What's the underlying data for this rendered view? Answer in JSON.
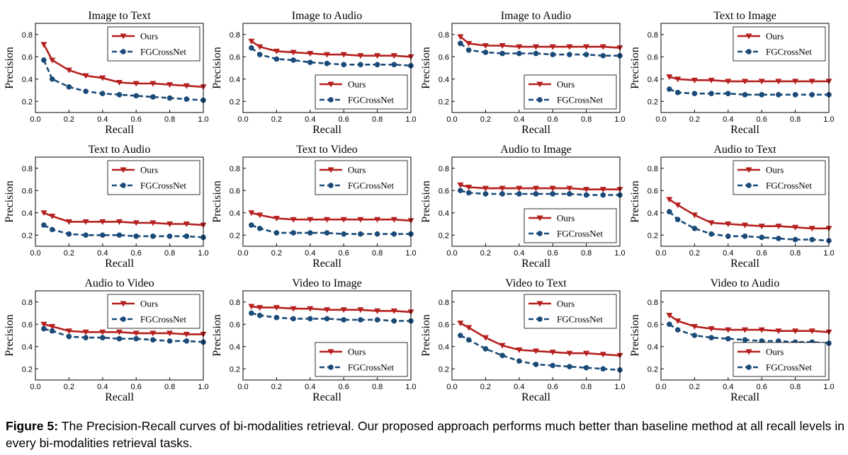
{
  "caption": {
    "label": "Figure 5:",
    "text": "The Precision-Recall curves of bi-modalities retrieval. Our proposed approach performs much better than baseline method at all recall levels in every bi-modalities retrieval tasks."
  },
  "colors": {
    "ours": "#b5201e",
    "baseline": "#1a4a78"
  },
  "chart_data": [
    {
      "type": "line",
      "title": "Image to Text",
      "xlabel": "Recall",
      "ylabel": "Precision",
      "xlim": [
        0,
        1
      ],
      "ylim": [
        0.1,
        0.9
      ],
      "legend": "top-right",
      "x": [
        0.05,
        0.1,
        0.2,
        0.3,
        0.4,
        0.5,
        0.6,
        0.7,
        0.8,
        0.9,
        1.0
      ],
      "series": [
        {
          "name": "Ours",
          "values": [
            0.71,
            0.57,
            0.48,
            0.43,
            0.41,
            0.37,
            0.36,
            0.36,
            0.35,
            0.34,
            0.33
          ]
        },
        {
          "name": "FGCrossNet",
          "values": [
            0.57,
            0.4,
            0.33,
            0.29,
            0.27,
            0.26,
            0.25,
            0.24,
            0.23,
            0.22,
            0.21
          ]
        }
      ]
    },
    {
      "type": "line",
      "title": "Image to Audio",
      "xlabel": "Recall",
      "ylabel": "Precision",
      "xlim": [
        0,
        1
      ],
      "ylim": [
        0.1,
        0.9
      ],
      "legend": "bottom-right",
      "x": [
        0.05,
        0.1,
        0.2,
        0.3,
        0.4,
        0.5,
        0.6,
        0.7,
        0.8,
        0.9,
        1.0
      ],
      "series": [
        {
          "name": "Ours",
          "values": [
            0.74,
            0.69,
            0.65,
            0.64,
            0.63,
            0.62,
            0.62,
            0.61,
            0.61,
            0.61,
            0.6
          ]
        },
        {
          "name": "FGCrossNet",
          "values": [
            0.68,
            0.62,
            0.58,
            0.57,
            0.55,
            0.54,
            0.53,
            0.53,
            0.53,
            0.53,
            0.52
          ]
        }
      ]
    },
    {
      "type": "line",
      "title": "Image to Audio",
      "xlabel": "Recall",
      "ylabel": "Precision",
      "xlim": [
        0,
        1
      ],
      "ylim": [
        0.1,
        0.9
      ],
      "legend": "bottom-right",
      "x": [
        0.05,
        0.1,
        0.2,
        0.3,
        0.4,
        0.5,
        0.6,
        0.7,
        0.8,
        0.9,
        1.0
      ],
      "series": [
        {
          "name": "Ours",
          "values": [
            0.78,
            0.72,
            0.7,
            0.7,
            0.69,
            0.69,
            0.69,
            0.69,
            0.69,
            0.69,
            0.68
          ]
        },
        {
          "name": "FGCrossNet",
          "values": [
            0.72,
            0.66,
            0.64,
            0.63,
            0.63,
            0.63,
            0.62,
            0.62,
            0.62,
            0.61,
            0.61
          ]
        }
      ]
    },
    {
      "type": "line",
      "title": "Text to Image",
      "xlabel": "Recall",
      "ylabel": "Precision",
      "xlim": [
        0,
        1
      ],
      "ylim": [
        0.1,
        0.9
      ],
      "legend": "top-right",
      "x": [
        0.05,
        0.1,
        0.2,
        0.3,
        0.4,
        0.5,
        0.6,
        0.7,
        0.8,
        0.9,
        1.0
      ],
      "series": [
        {
          "name": "Ours",
          "values": [
            0.42,
            0.4,
            0.39,
            0.39,
            0.38,
            0.38,
            0.38,
            0.38,
            0.38,
            0.38,
            0.38
          ]
        },
        {
          "name": "FGCrossNet",
          "values": [
            0.31,
            0.28,
            0.27,
            0.27,
            0.27,
            0.26,
            0.26,
            0.26,
            0.26,
            0.26,
            0.26
          ]
        }
      ]
    },
    {
      "type": "line",
      "title": "Text to Audio",
      "xlabel": "Recall",
      "ylabel": "Precision",
      "xlim": [
        0,
        1
      ],
      "ylim": [
        0.1,
        0.9
      ],
      "legend": "top-right",
      "x": [
        0.05,
        0.1,
        0.2,
        0.3,
        0.4,
        0.5,
        0.6,
        0.7,
        0.8,
        0.9,
        1.0
      ],
      "series": [
        {
          "name": "Ours",
          "values": [
            0.4,
            0.37,
            0.32,
            0.32,
            0.32,
            0.32,
            0.31,
            0.31,
            0.3,
            0.3,
            0.29
          ]
        },
        {
          "name": "FGCrossNet",
          "values": [
            0.29,
            0.25,
            0.21,
            0.2,
            0.2,
            0.2,
            0.19,
            0.19,
            0.19,
            0.19,
            0.18
          ]
        }
      ]
    },
    {
      "type": "line",
      "title": "Text to Video",
      "xlabel": "Recall",
      "ylabel": "Precision",
      "xlim": [
        0,
        1
      ],
      "ylim": [
        0.1,
        0.9
      ],
      "legend": "top-right",
      "x": [
        0.05,
        0.1,
        0.2,
        0.3,
        0.4,
        0.5,
        0.6,
        0.7,
        0.8,
        0.9,
        1.0
      ],
      "series": [
        {
          "name": "Ours",
          "values": [
            0.4,
            0.38,
            0.35,
            0.34,
            0.34,
            0.34,
            0.34,
            0.34,
            0.34,
            0.34,
            0.33
          ]
        },
        {
          "name": "FGCrossNet",
          "values": [
            0.29,
            0.26,
            0.22,
            0.22,
            0.22,
            0.22,
            0.21,
            0.21,
            0.21,
            0.21,
            0.21
          ]
        }
      ]
    },
    {
      "type": "line",
      "title": "Audio to Image",
      "xlabel": "Recall",
      "ylabel": "Precision",
      "xlim": [
        0,
        1
      ],
      "ylim": [
        0.1,
        0.9
      ],
      "legend": "bottom-right",
      "x": [
        0.05,
        0.1,
        0.2,
        0.3,
        0.4,
        0.5,
        0.6,
        0.7,
        0.8,
        0.9,
        1.0
      ],
      "series": [
        {
          "name": "Ours",
          "values": [
            0.65,
            0.63,
            0.62,
            0.62,
            0.62,
            0.62,
            0.62,
            0.62,
            0.61,
            0.61,
            0.61
          ]
        },
        {
          "name": "FGCrossNet",
          "values": [
            0.6,
            0.58,
            0.57,
            0.57,
            0.57,
            0.57,
            0.57,
            0.57,
            0.56,
            0.56,
            0.56
          ]
        }
      ]
    },
    {
      "type": "line",
      "title": "Audio to Text",
      "xlabel": "Recall",
      "ylabel": "Precision",
      "xlim": [
        0,
        1
      ],
      "ylim": [
        0.1,
        0.9
      ],
      "legend": "top-right",
      "x": [
        0.05,
        0.1,
        0.2,
        0.3,
        0.4,
        0.5,
        0.6,
        0.7,
        0.8,
        0.9,
        1.0
      ],
      "series": [
        {
          "name": "Ours",
          "values": [
            0.52,
            0.47,
            0.38,
            0.31,
            0.3,
            0.29,
            0.28,
            0.28,
            0.27,
            0.26,
            0.26
          ]
        },
        {
          "name": "FGCrossNet",
          "values": [
            0.41,
            0.34,
            0.26,
            0.21,
            0.19,
            0.19,
            0.18,
            0.17,
            0.16,
            0.16,
            0.15
          ]
        }
      ]
    },
    {
      "type": "line",
      "title": "Audio to Video",
      "xlabel": "Recall",
      "ylabel": "Precision",
      "xlim": [
        0,
        1
      ],
      "ylim": [
        0.1,
        0.9
      ],
      "legend": "top-right",
      "x": [
        0.05,
        0.1,
        0.2,
        0.3,
        0.4,
        0.5,
        0.6,
        0.7,
        0.8,
        0.9,
        1.0
      ],
      "series": [
        {
          "name": "Ours",
          "values": [
            0.6,
            0.58,
            0.54,
            0.53,
            0.53,
            0.53,
            0.52,
            0.52,
            0.52,
            0.51,
            0.51
          ]
        },
        {
          "name": "FGCrossNet",
          "values": [
            0.56,
            0.54,
            0.49,
            0.48,
            0.48,
            0.47,
            0.47,
            0.46,
            0.45,
            0.45,
            0.44
          ]
        }
      ]
    },
    {
      "type": "line",
      "title": "Video to Image",
      "xlabel": "Recall",
      "ylabel": "Precision",
      "xlim": [
        0,
        1
      ],
      "ylim": [
        0.1,
        0.9
      ],
      "legend": "bottom-right",
      "x": [
        0.05,
        0.1,
        0.2,
        0.3,
        0.4,
        0.5,
        0.6,
        0.7,
        0.8,
        0.9,
        1.0
      ],
      "series": [
        {
          "name": "Ours",
          "values": [
            0.76,
            0.75,
            0.75,
            0.74,
            0.74,
            0.73,
            0.73,
            0.73,
            0.72,
            0.72,
            0.71
          ]
        },
        {
          "name": "FGCrossNet",
          "values": [
            0.7,
            0.68,
            0.66,
            0.65,
            0.65,
            0.65,
            0.64,
            0.64,
            0.64,
            0.63,
            0.63
          ]
        }
      ]
    },
    {
      "type": "line",
      "title": "Video to Text",
      "xlabel": "Recall",
      "ylabel": "Precision",
      "xlim": [
        0,
        1
      ],
      "ylim": [
        0.1,
        0.9
      ],
      "legend": "top-right",
      "x": [
        0.05,
        0.1,
        0.2,
        0.3,
        0.4,
        0.5,
        0.6,
        0.7,
        0.8,
        0.9,
        1.0
      ],
      "series": [
        {
          "name": "Ours",
          "values": [
            0.61,
            0.57,
            0.48,
            0.41,
            0.37,
            0.36,
            0.35,
            0.34,
            0.34,
            0.33,
            0.32
          ]
        },
        {
          "name": "FGCrossNet",
          "values": [
            0.5,
            0.46,
            0.38,
            0.32,
            0.27,
            0.24,
            0.23,
            0.22,
            0.21,
            0.2,
            0.19
          ]
        }
      ]
    },
    {
      "type": "line",
      "title": "Video to Audio",
      "xlabel": "Recall",
      "ylabel": "Precision",
      "xlim": [
        0,
        1
      ],
      "ylim": [
        0.1,
        0.9
      ],
      "legend": "bottom-right",
      "x": [
        0.05,
        0.1,
        0.2,
        0.3,
        0.4,
        0.5,
        0.6,
        0.7,
        0.8,
        0.9,
        1.0
      ],
      "series": [
        {
          "name": "Ours",
          "values": [
            0.68,
            0.63,
            0.58,
            0.56,
            0.55,
            0.55,
            0.55,
            0.54,
            0.54,
            0.54,
            0.53
          ]
        },
        {
          "name": "FGCrossNet",
          "values": [
            0.6,
            0.55,
            0.5,
            0.48,
            0.47,
            0.46,
            0.45,
            0.45,
            0.44,
            0.44,
            0.43
          ]
        }
      ]
    }
  ]
}
